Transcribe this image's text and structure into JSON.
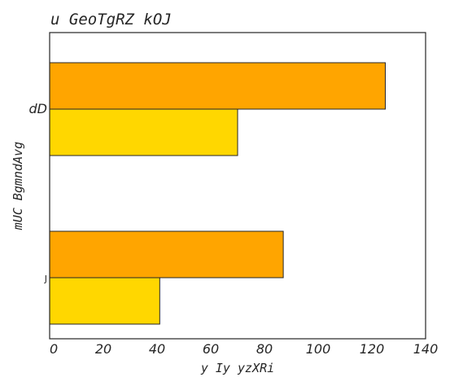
{
  "chart_data": {
    "type": "bar",
    "orientation": "horizontal",
    "title": "u GeoTgRZ kOJ",
    "xlabel": "y Iy yzXRi",
    "ylabel": "mUC BgmndAvg",
    "categories": [
      "dD",
      "J"
    ],
    "series": [
      {
        "color": "#FFA500",
        "values": [
          125,
          87
        ]
      },
      {
        "color": "#FFD700",
        "values": [
          70,
          41
        ]
      }
    ],
    "xlim": [
      0,
      140
    ],
    "xticks": [
      0,
      20,
      40,
      60,
      80,
      100,
      120,
      140
    ],
    "grid": false,
    "legend": "none"
  }
}
